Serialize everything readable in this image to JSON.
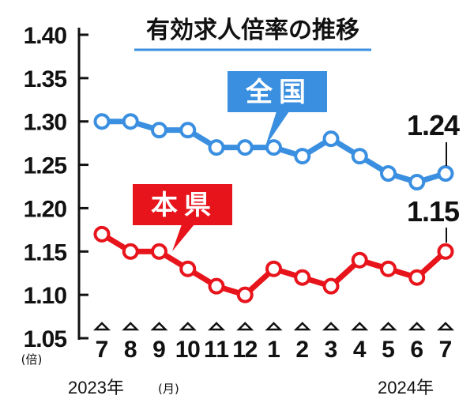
{
  "chart_data": {
    "type": "line",
    "title": "有効求人倍率の推移",
    "unit": "(倍)",
    "x_unit": "(月)",
    "categories": [
      "7",
      "8",
      "9",
      "10",
      "11",
      "12",
      "1",
      "2",
      "3",
      "4",
      "5",
      "6",
      "7"
    ],
    "year_start_label": "2023年",
    "year_end_label": "2024年",
    "yticks": [
      "1.40",
      "1.35",
      "1.30",
      "1.25",
      "1.20",
      "1.15",
      "1.10",
      "1.05"
    ],
    "ylim": [
      1.05,
      1.4
    ],
    "series": [
      {
        "name": "全国",
        "color": "#3a8fe0",
        "values": [
          1.3,
          1.3,
          1.29,
          1.29,
          1.27,
          1.27,
          1.27,
          1.26,
          1.28,
          1.26,
          1.24,
          1.23,
          1.24
        ],
        "end_label": "1.24"
      },
      {
        "name": "本県",
        "color": "#e8141c",
        "values": [
          1.17,
          1.15,
          1.15,
          1.13,
          1.11,
          1.1,
          1.13,
          1.12,
          1.11,
          1.14,
          1.13,
          1.12,
          1.15
        ],
        "end_label": "1.15"
      }
    ]
  }
}
